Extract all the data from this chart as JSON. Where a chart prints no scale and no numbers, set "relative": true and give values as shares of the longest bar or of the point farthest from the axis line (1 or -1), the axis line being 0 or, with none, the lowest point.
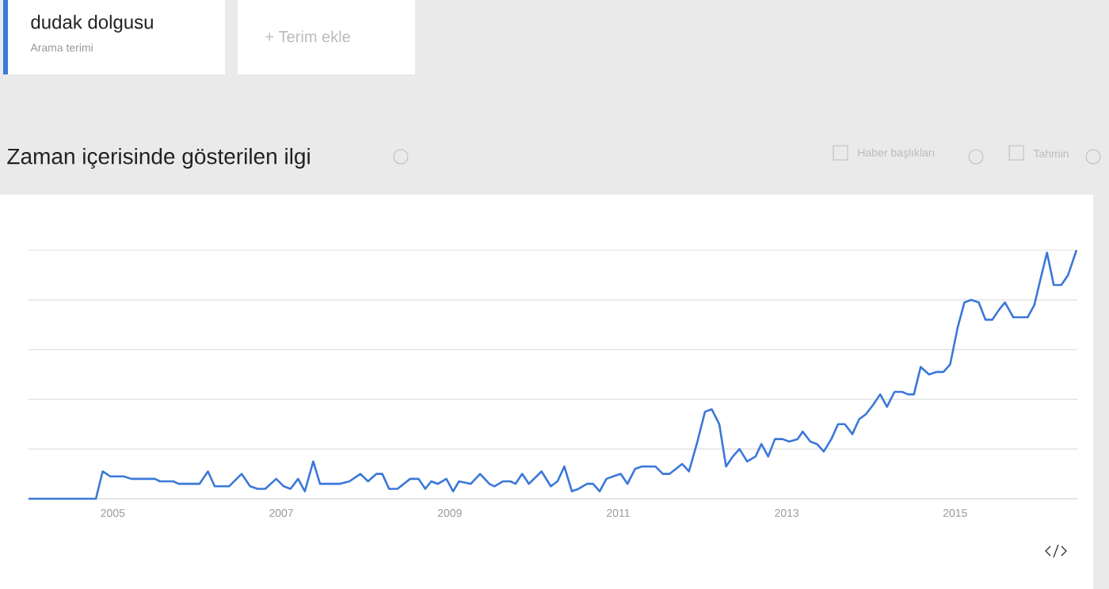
{
  "chart_data": {
    "type": "line",
    "title": "Zaman içerisinde gösterilen ilgi",
    "annotations": [
      "Arama terimi",
      "+ Terim ekle",
      "Haber başlıkları",
      "Tahmin"
    ],
    "relative": true,
    "grid": "y",
    "legend": "top left",
    "xlim": [
      2004.0,
      2016.45
    ],
    "xticks": [
      2005,
      2007,
      2009,
      2011,
      2013,
      2015
    ],
    "x": [
      2004.0,
      2004.8,
      2004.88,
      2004.97,
      2005.13,
      2005.22,
      2005.5,
      2005.56,
      2005.72,
      2005.78,
      2006.03,
      2006.13,
      2006.21,
      2006.38,
      2006.53,
      2006.63,
      2006.72,
      2006.81,
      2006.94,
      2007.03,
      2007.11,
      2007.2,
      2007.28,
      2007.38,
      2007.46,
      2007.69,
      2007.81,
      2007.94,
      2008.03,
      2008.13,
      2008.2,
      2008.28,
      2008.38,
      2008.53,
      2008.63,
      2008.71,
      2008.78,
      2008.86,
      2008.96,
      2009.04,
      2009.11,
      2009.25,
      2009.36,
      2009.47,
      2009.53,
      2009.63,
      2009.72,
      2009.78,
      2009.86,
      2009.94,
      2010.09,
      2010.2,
      2010.28,
      2010.36,
      2010.45,
      2010.53,
      2010.63,
      2010.7,
      2010.78,
      2010.86,
      2010.94,
      2011.03,
      2011.11,
      2011.2,
      2011.28,
      2011.44,
      2011.53,
      2011.61,
      2011.76,
      2011.84,
      2011.94,
      2012.03,
      2012.11,
      2012.2,
      2012.28,
      2012.36,
      2012.44,
      2012.53,
      2012.63,
      2012.7,
      2012.78,
      2012.86,
      2012.95,
      2013.03,
      2013.13,
      2013.19,
      2013.28,
      2013.36,
      2013.44,
      2013.53,
      2013.61,
      2013.69,
      2013.78,
      2013.86,
      2013.94,
      2014.03,
      2014.11,
      2014.19,
      2014.28,
      2014.37,
      2014.44,
      2014.51,
      2014.59,
      2014.69,
      2014.78,
      2014.86,
      2014.94,
      2015.03,
      2015.11,
      2015.19,
      2015.28,
      2015.36,
      2015.44,
      2015.52,
      2015.59,
      2015.69,
      2015.86,
      2015.94,
      2016.01,
      2016.09,
      2016.17,
      2016.26,
      2016.34,
      2016.44
    ],
    "series": [
      {
        "name": "dudak dolgusu",
        "color": "#3b78d8",
        "values": [
          0,
          0,
          0.11,
          0.09,
          0.09,
          0.08,
          0.08,
          0.07,
          0.07,
          0.06,
          0.06,
          0.11,
          0.05,
          0.05,
          0.1,
          0.05,
          0.04,
          0.04,
          0.08,
          0.05,
          0.04,
          0.08,
          0.03,
          0.15,
          0.06,
          0.06,
          0.07,
          0.1,
          0.07,
          0.1,
          0.1,
          0.04,
          0.04,
          0.08,
          0.08,
          0.04,
          0.07,
          0.06,
          0.08,
          0.03,
          0.07,
          0.06,
          0.1,
          0.06,
          0.05,
          0.07,
          0.07,
          0.06,
          0.1,
          0.06,
          0.11,
          0.05,
          0.07,
          0.13,
          0.03,
          0.04,
          0.06,
          0.06,
          0.03,
          0.08,
          0.09,
          0.1,
          0.06,
          0.12,
          0.13,
          0.13,
          0.1,
          0.1,
          0.14,
          0.11,
          0.23,
          0.35,
          0.36,
          0.3,
          0.13,
          0.17,
          0.2,
          0.15,
          0.17,
          0.22,
          0.17,
          0.24,
          0.24,
          0.23,
          0.24,
          0.27,
          0.23,
          0.22,
          0.19,
          0.24,
          0.3,
          0.3,
          0.26,
          0.32,
          0.34,
          0.38,
          0.42,
          0.37,
          0.43,
          0.43,
          0.42,
          0.42,
          0.53,
          0.5,
          0.51,
          0.51,
          0.54,
          0.69,
          0.79,
          0.8,
          0.79,
          0.72,
          0.72,
          0.76,
          0.79,
          0.73,
          0.73,
          0.78,
          0.88,
          0.99,
          0.86,
          0.86,
          0.9,
          1.0
        ]
      }
    ]
  }
}
